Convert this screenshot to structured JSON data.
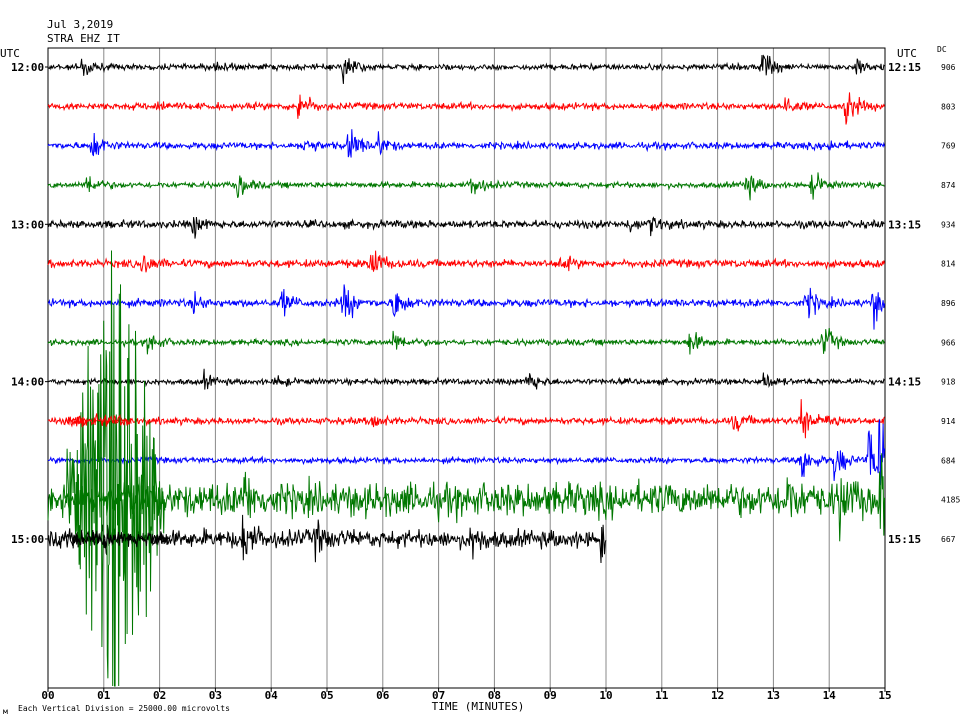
{
  "header": {
    "date": "Jul 3,2019",
    "station": "STRA EHZ IT"
  },
  "left_unit": "UTC",
  "right_unit": "UTC",
  "dc_label": "DC",
  "footer": {
    "scale_note": "Each Vertical Division = 25000.00 microvolts",
    "corner_mark": "м"
  },
  "chart_data": {
    "type": "line",
    "title": "STRA EHZ IT",
    "xlabel": "TIME (MINUTES)",
    "ylabel": "UTC",
    "xlim": [
      0,
      15
    ],
    "x_ticks": [
      "00",
      "01",
      "02",
      "03",
      "04",
      "05",
      "06",
      "07",
      "08",
      "09",
      "10",
      "11",
      "12",
      "13",
      "14",
      "15"
    ],
    "left_time_labels": [
      {
        "row": 0,
        "label": "12:00"
      },
      {
        "row": 4,
        "label": "13:00"
      },
      {
        "row": 8,
        "label": "14:00"
      },
      {
        "row": 12,
        "label": "15:00"
      }
    ],
    "right_time_labels": [
      {
        "row": 0,
        "label": "12:15"
      },
      {
        "row": 4,
        "label": "13:15"
      },
      {
        "row": 8,
        "label": "14:15"
      },
      {
        "row": 12,
        "label": "15:15"
      }
    ],
    "series_colors": [
      "#000000",
      "#ff0000",
      "#0000ff",
      "#007700"
    ],
    "traces": [
      {
        "row": 0,
        "color": "#000000",
        "dc": "906",
        "noise": 3.0,
        "end": 15,
        "events": [
          [
            0.6,
            15
          ],
          [
            3.0,
            8
          ],
          [
            5.3,
            20
          ],
          [
            12.8,
            25
          ],
          [
            14.5,
            10
          ]
        ]
      },
      {
        "row": 1,
        "color": "#ff0000",
        "dc": "803",
        "noise": 3.5,
        "end": 15,
        "events": [
          [
            1.9,
            9
          ],
          [
            4.5,
            22
          ],
          [
            13.2,
            12
          ],
          [
            14.3,
            24
          ]
        ]
      },
      {
        "row": 2,
        "color": "#0000ff",
        "dc": "769",
        "noise": 3.5,
        "end": 15,
        "events": [
          [
            0.8,
            18
          ],
          [
            4.6,
            10
          ],
          [
            5.4,
            22
          ],
          [
            5.9,
            14
          ],
          [
            14.0,
            6
          ]
        ]
      },
      {
        "row": 3,
        "color": "#007700",
        "dc": "874",
        "noise": 3.0,
        "end": 15,
        "events": [
          [
            0.7,
            14
          ],
          [
            3.4,
            16
          ],
          [
            7.6,
            16
          ],
          [
            12.5,
            18
          ],
          [
            13.7,
            16
          ]
        ]
      },
      {
        "row": 4,
        "color": "#000000",
        "dc": "934",
        "noise": 4.0,
        "end": 15,
        "events": [
          [
            2.6,
            12
          ],
          [
            10.8,
            9
          ],
          [
            10.4,
            7
          ]
        ]
      },
      {
        "row": 5,
        "color": "#ff0000",
        "dc": "814",
        "noise": 4.0,
        "end": 15,
        "events": [
          [
            1.7,
            14
          ],
          [
            5.8,
            22
          ],
          [
            9.2,
            8
          ]
        ]
      },
      {
        "row": 6,
        "color": "#0000ff",
        "dc": "896",
        "noise": 4.0,
        "end": 15,
        "events": [
          [
            2.6,
            10
          ],
          [
            4.2,
            14
          ],
          [
            5.3,
            24
          ],
          [
            6.2,
            22
          ],
          [
            13.6,
            18
          ],
          [
            14.8,
            22
          ]
        ]
      },
      {
        "row": 7,
        "color": "#007700",
        "dc": "966",
        "noise": 3.0,
        "end": 15,
        "events": [
          [
            1.8,
            14
          ],
          [
            6.2,
            14
          ],
          [
            11.5,
            16
          ],
          [
            13.9,
            20
          ]
        ]
      },
      {
        "row": 8,
        "color": "#000000",
        "dc": "918",
        "noise": 3.0,
        "end": 15,
        "events": [
          [
            2.8,
            8
          ],
          [
            4.1,
            7
          ],
          [
            8.6,
            16
          ],
          [
            12.8,
            12
          ]
        ]
      },
      {
        "row": 9,
        "color": "#ff0000",
        "dc": "914",
        "noise": 3.5,
        "end": 15,
        "events": [
          [
            5.8,
            12
          ],
          [
            12.3,
            12
          ],
          [
            13.5,
            24
          ],
          [
            14.0,
            10
          ]
        ]
      },
      {
        "row": 10,
        "color": "#0000ff",
        "dc": "684",
        "noise": 3.0,
        "end": 15,
        "events": [
          [
            13.5,
            26
          ],
          [
            14.1,
            24
          ],
          [
            14.7,
            40
          ],
          [
            14.9,
            55
          ]
        ]
      },
      {
        "row": 11,
        "color": "#007700",
        "dc": "4185",
        "noise": 17.0,
        "end": 15,
        "events": [
          [
            3.5,
            24
          ],
          [
            13.2,
            26
          ],
          [
            14.2,
            30
          ],
          [
            14.9,
            42
          ]
        ]
      },
      {
        "row": 12,
        "color": "#000000",
        "dc": "667",
        "noise": 9.0,
        "end": 10,
        "events": [
          [
            1.0,
            20
          ],
          [
            3.5,
            24
          ],
          [
            4.8,
            14
          ],
          [
            7.6,
            18
          ],
          [
            9.9,
            16
          ]
        ]
      }
    ],
    "large_event": {
      "color": "#007700",
      "start": 0.3,
      "end": 2.1,
      "peak": 1.2
    }
  }
}
